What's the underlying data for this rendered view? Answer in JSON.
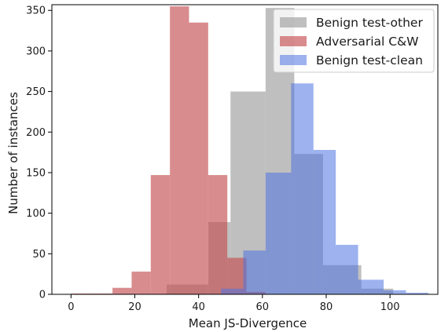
{
  "chart_data": {
    "type": "histogram",
    "xlabel": "Mean JS-Divergence",
    "ylabel": "Number of instances",
    "xlim": [
      -6,
      115
    ],
    "ylim": [
      0,
      357
    ],
    "xticks": [
      0,
      20,
      40,
      60,
      80,
      100
    ],
    "yticks": [
      0,
      50,
      100,
      150,
      200,
      250,
      300,
      350
    ],
    "grid": false,
    "legend_position": "top-right",
    "series": [
      {
        "name": "Benign test-other",
        "color": "#a9a9a9",
        "opacity": 0.75,
        "bins": [
          {
            "x0": 30,
            "x1": 37,
            "y": 12
          },
          {
            "x0": 37,
            "x1": 43,
            "y": 12
          },
          {
            "x0": 43,
            "x1": 49,
            "y": 89
          },
          {
            "x0": 49,
            "x1": 50,
            "y": 89
          },
          {
            "x0": 50,
            "x1": 61,
            "y": 250
          },
          {
            "x0": 61,
            "x1": 70,
            "y": 353
          },
          {
            "x0": 70,
            "x1": 79,
            "y": 173
          },
          {
            "x0": 79,
            "x1": 91,
            "y": 36
          },
          {
            "x0": 91,
            "x1": 101,
            "y": 7
          }
        ]
      },
      {
        "name": "Adversarial C&W",
        "color": "#c44e52",
        "opacity": 0.65,
        "bins": [
          {
            "x0": 0,
            "x1": 6,
            "y": 1
          },
          {
            "x0": 6,
            "x1": 13,
            "y": 1
          },
          {
            "x0": 13,
            "x1": 19,
            "y": 8
          },
          {
            "x0": 19,
            "x1": 25,
            "y": 28
          },
          {
            "x0": 25,
            "x1": 31,
            "y": 147
          },
          {
            "x0": 31,
            "x1": 37,
            "y": 355
          },
          {
            "x0": 37,
            "x1": 43,
            "y": 335
          },
          {
            "x0": 43,
            "x1": 49,
            "y": 147
          },
          {
            "x0": 49,
            "x1": 55,
            "y": 45
          },
          {
            "x0": 55,
            "x1": 61,
            "y": 3
          }
        ]
      },
      {
        "name": "Benign test-clean",
        "color": "#4c72e0",
        "opacity": 0.55,
        "bins": [
          {
            "x0": 47,
            "x1": 54,
            "y": 7
          },
          {
            "x0": 54,
            "x1": 61,
            "y": 54
          },
          {
            "x0": 61,
            "x1": 69,
            "y": 150
          },
          {
            "x0": 69,
            "x1": 76,
            "y": 260
          },
          {
            "x0": 76,
            "x1": 83,
            "y": 178
          },
          {
            "x0": 83,
            "x1": 90,
            "y": 61
          },
          {
            "x0": 90,
            "x1": 98,
            "y": 18
          },
          {
            "x0": 98,
            "x1": 105,
            "y": 5
          },
          {
            "x0": 105,
            "x1": 112,
            "y": 2
          }
        ]
      }
    ]
  }
}
